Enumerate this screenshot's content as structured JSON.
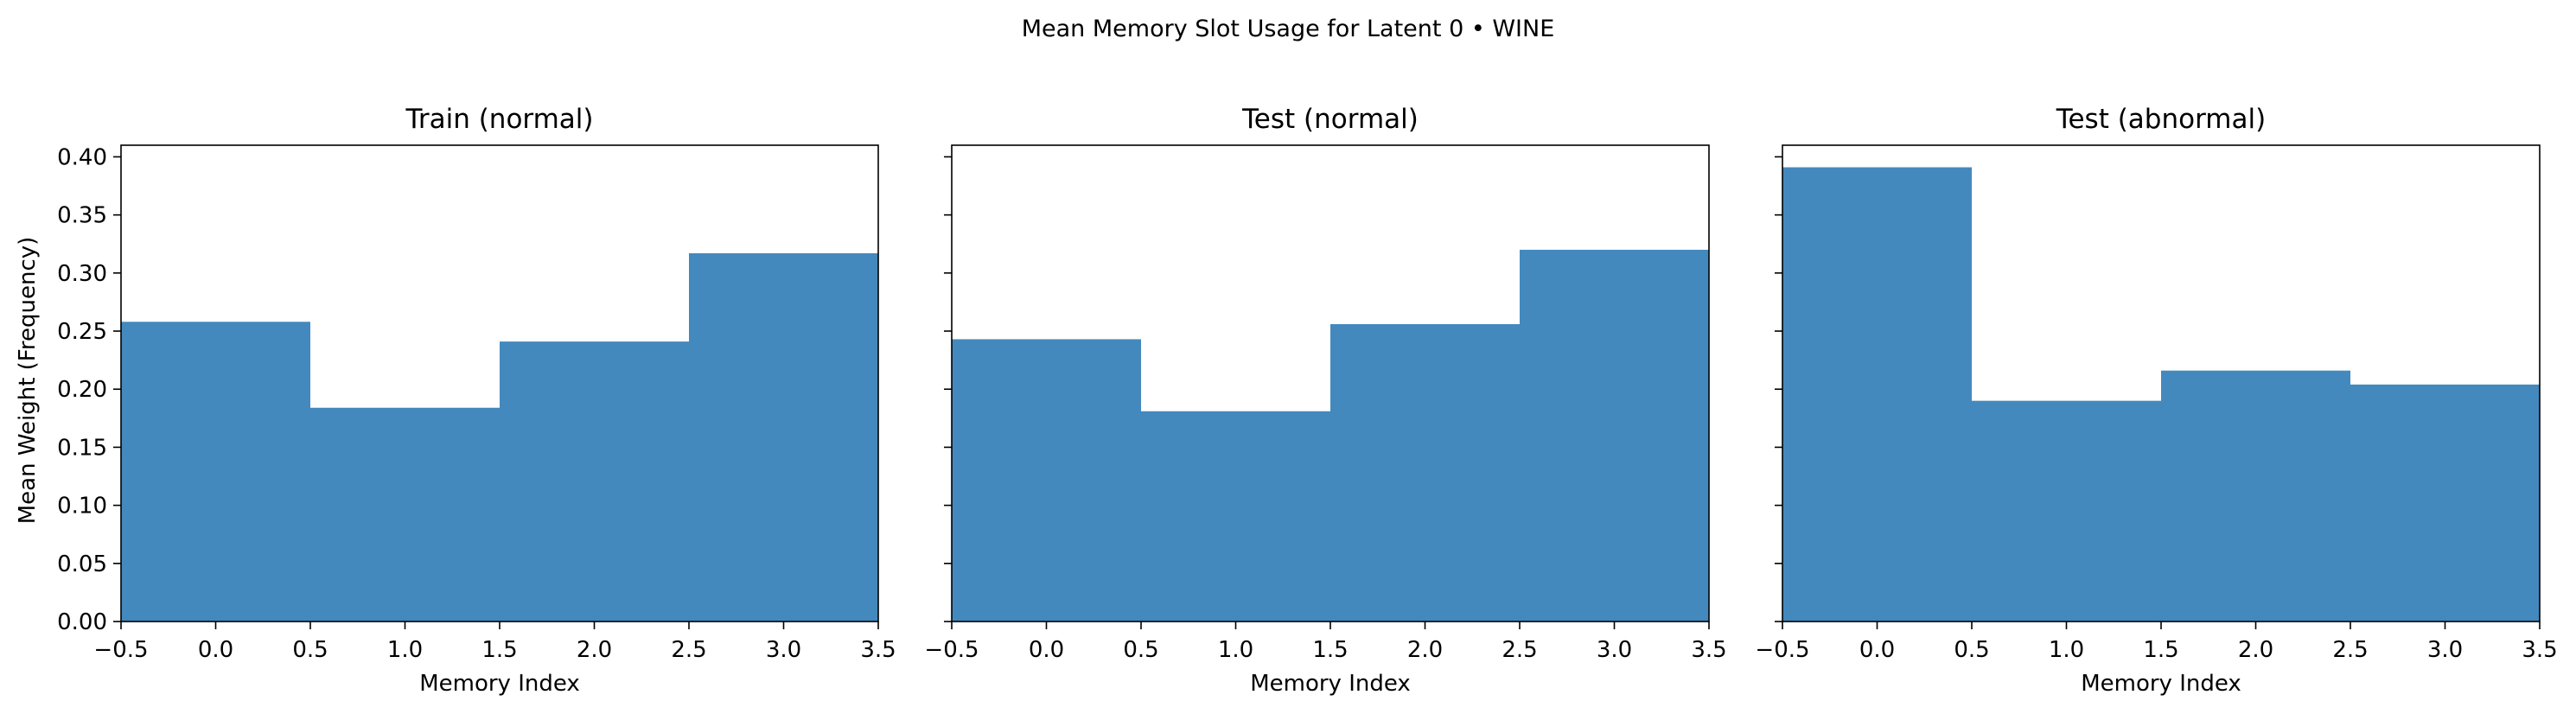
{
  "figure": {
    "suptitle": "Mean Memory Slot Usage for Latent 0 • WINE",
    "ylabel": "Mean Weight (Frequency)"
  },
  "colors": {
    "bar": "#4389be",
    "axis": "#000000",
    "background": "#ffffff"
  },
  "chart_data": [
    {
      "type": "bar",
      "title": "Train (normal)",
      "xlabel": "Memory Index",
      "ylabel": "Mean Weight (Frequency)",
      "categories": [
        0,
        1,
        2,
        3
      ],
      "values": [
        0.258,
        0.184,
        0.241,
        0.317
      ],
      "bar_width": 1.0,
      "xlim": [
        -0.5,
        3.5
      ],
      "ylim": [
        0,
        0.41
      ],
      "xticks": [
        "−0.5",
        "0.0",
        "0.5",
        "1.0",
        "1.5",
        "2.0",
        "2.5",
        "3.0",
        "3.5"
      ],
      "yticks": [
        "0.00",
        "0.05",
        "0.10",
        "0.15",
        "0.20",
        "0.25",
        "0.30",
        "0.35",
        "0.40"
      ],
      "grid": false,
      "legend": false
    },
    {
      "type": "bar",
      "title": "Test (normal)",
      "xlabel": "Memory Index",
      "categories": [
        0,
        1,
        2,
        3
      ],
      "values": [
        0.243,
        0.181,
        0.256,
        0.32
      ],
      "bar_width": 1.0,
      "xlim": [
        -0.5,
        3.5
      ],
      "ylim": [
        0,
        0.41
      ],
      "xticks": [
        "−0.5",
        "0.0",
        "0.5",
        "1.0",
        "1.5",
        "2.0",
        "2.5",
        "3.0",
        "3.5"
      ],
      "yticks": [],
      "grid": false,
      "legend": false
    },
    {
      "type": "bar",
      "title": "Test (abnormal)",
      "xlabel": "Memory Index",
      "categories": [
        0,
        1,
        2,
        3
      ],
      "values": [
        0.391,
        0.19,
        0.216,
        0.204
      ],
      "bar_width": 1.0,
      "xlim": [
        -0.5,
        3.5
      ],
      "ylim": [
        0,
        0.41
      ],
      "xticks": [
        "−0.5",
        "0.0",
        "0.5",
        "1.0",
        "1.5",
        "2.0",
        "2.5",
        "3.0",
        "3.5"
      ],
      "yticks": [],
      "grid": false,
      "legend": false
    }
  ]
}
